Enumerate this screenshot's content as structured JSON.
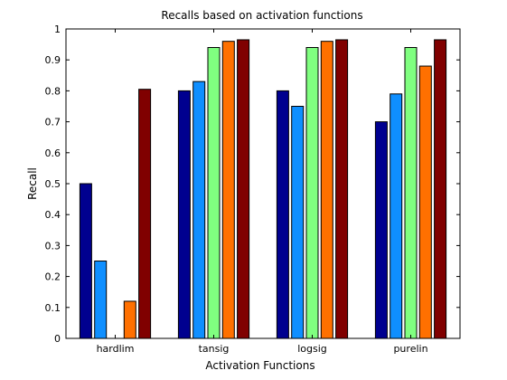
{
  "chart_data": {
    "type": "bar",
    "title": "Recalls based on activation functions",
    "xlabel": "Activation Functions",
    "ylabel": "Recall",
    "ylim": [
      0,
      1
    ],
    "yticks": [
      "0",
      "0.1",
      "0.2",
      "0.3",
      "0.4",
      "0.5",
      "0.6",
      "0.7",
      "0.8",
      "0.9",
      "1"
    ],
    "categories": [
      "hardlim",
      "tansig",
      "logsig",
      "purelin"
    ],
    "grid": false,
    "legend": "none",
    "series": [
      {
        "color": "#00008f",
        "values": [
          0.5,
          0.8,
          0.8,
          0.7
        ]
      },
      {
        "color": "#0f8fff",
        "values": [
          0.25,
          0.83,
          0.75,
          0.79
        ]
      },
      {
        "color": "#80ff80",
        "values": [
          0,
          0.94,
          0.94,
          0.94
        ]
      },
      {
        "color": "#ff7000",
        "values": [
          0.12,
          0.96,
          0.96,
          0.88
        ]
      },
      {
        "color": "#800000",
        "values": [
          0.805,
          0.965,
          0.965,
          0.965
        ]
      }
    ]
  }
}
